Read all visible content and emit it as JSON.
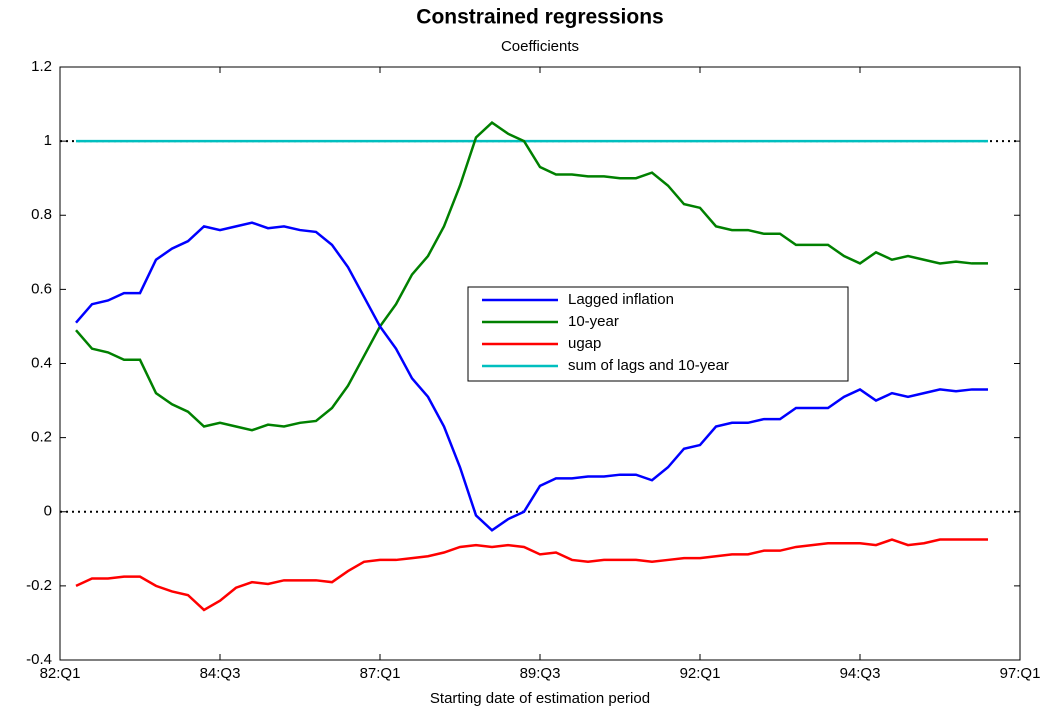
{
  "chart_data": {
    "type": "line",
    "title": "Constrained regressions",
    "subtitle": "Coefficients",
    "x_label": "Starting date of estimation period",
    "x": [
      82.25,
      82.5,
      82.75,
      83,
      83.25,
      83.5,
      83.75,
      84,
      84.25,
      84.5,
      84.75,
      85,
      85.25,
      85.5,
      85.75,
      86,
      86.25,
      86.5,
      86.75,
      87,
      87.25,
      87.5,
      87.75,
      88,
      88.25,
      88.5,
      88.75,
      89,
      89.25,
      89.5,
      89.75,
      90,
      90.25,
      90.5,
      90.75,
      91,
      91.25,
      91.5,
      91.75,
      92,
      92.25,
      92.5,
      92.75,
      93,
      93.25,
      93.5,
      93.75,
      94,
      94.25,
      94.5,
      94.75,
      95,
      95.25,
      95.5,
      95.75,
      96,
      96.25,
      96.5
    ],
    "series": [
      {
        "name": "Lagged inflation",
        "color": "#0000ff",
        "values": [
          0.51,
          0.56,
          0.57,
          0.59,
          0.59,
          0.68,
          0.71,
          0.73,
          0.77,
          0.76,
          0.77,
          0.78,
          0.765,
          0.77,
          0.76,
          0.755,
          0.72,
          0.66,
          0.58,
          0.5,
          0.44,
          0.36,
          0.31,
          0.23,
          0.12,
          -0.01,
          -0.05,
          -0.02,
          0.0,
          0.07,
          0.09,
          0.09,
          0.095,
          0.095,
          0.1,
          0.1,
          0.085,
          0.12,
          0.17,
          0.18,
          0.23,
          0.24,
          0.24,
          0.25,
          0.25,
          0.28,
          0.28,
          0.28,
          0.31,
          0.33,
          0.3,
          0.32,
          0.31,
          0.32,
          0.33,
          0.325,
          0.33,
          0.33
        ]
      },
      {
        "name": "10-year",
        "color": "#008000",
        "values": [
          0.49,
          0.44,
          0.43,
          0.41,
          0.41,
          0.32,
          0.29,
          0.27,
          0.23,
          0.24,
          0.23,
          0.22,
          0.235,
          0.23,
          0.24,
          0.245,
          0.28,
          0.34,
          0.42,
          0.5,
          0.56,
          0.64,
          0.69,
          0.77,
          0.88,
          1.01,
          1.05,
          1.02,
          1.0,
          0.93,
          0.91,
          0.91,
          0.905,
          0.905,
          0.9,
          0.9,
          0.915,
          0.88,
          0.83,
          0.82,
          0.77,
          0.76,
          0.76,
          0.75,
          0.75,
          0.72,
          0.72,
          0.72,
          0.69,
          0.67,
          0.7,
          0.68,
          0.69,
          0.68,
          0.67,
          0.675,
          0.67,
          0.67
        ]
      },
      {
        "name": "ugap",
        "color": "#ff0000",
        "values": [
          -0.2,
          -0.18,
          -0.18,
          -0.175,
          -0.175,
          -0.2,
          -0.215,
          -0.225,
          -0.265,
          -0.24,
          -0.205,
          -0.19,
          -0.195,
          -0.185,
          -0.185,
          -0.185,
          -0.19,
          -0.16,
          -0.135,
          -0.13,
          -0.13,
          -0.125,
          -0.12,
          -0.11,
          -0.095,
          -0.09,
          -0.095,
          -0.09,
          -0.095,
          -0.115,
          -0.11,
          -0.13,
          -0.135,
          -0.13,
          -0.13,
          -0.13,
          -0.135,
          -0.13,
          -0.125,
          -0.125,
          -0.12,
          -0.115,
          -0.115,
          -0.105,
          -0.105,
          -0.095,
          -0.09,
          -0.085,
          -0.085,
          -0.085,
          -0.09,
          -0.075,
          -0.09,
          -0.085,
          -0.075,
          -0.075,
          -0.075,
          -0.075
        ]
      },
      {
        "name": "sum of lags and 10-year",
        "color": "#00bfbf",
        "values": [
          1,
          1,
          1,
          1,
          1,
          1,
          1,
          1,
          1,
          1,
          1,
          1,
          1,
          1,
          1,
          1,
          1,
          1,
          1,
          1,
          1,
          1,
          1,
          1,
          1,
          1,
          1,
          1,
          1,
          1,
          1,
          1,
          1,
          1,
          1,
          1,
          1,
          1,
          1,
          1,
          1,
          1,
          1,
          1,
          1,
          1,
          1,
          1,
          1,
          1,
          1,
          1,
          1,
          1,
          1,
          1,
          1,
          1
        ]
      }
    ],
    "xlim": [
      82,
      97
    ],
    "xticks": [
      {
        "value": 82,
        "label": "82:Q1"
      },
      {
        "value": 84.5,
        "label": "84:Q3"
      },
      {
        "value": 87,
        "label": "87:Q1"
      },
      {
        "value": 89.5,
        "label": "89:Q3"
      },
      {
        "value": 92,
        "label": "92:Q1"
      },
      {
        "value": 94.5,
        "label": "94:Q3"
      },
      {
        "value": 97,
        "label": "97:Q1"
      }
    ],
    "ylim": [
      -0.4,
      1.2
    ],
    "yticks": [
      -0.4,
      -0.2,
      0,
      0.2,
      0.4,
      0.6,
      0.8,
      1,
      1.2
    ],
    "reference_lines": [
      0,
      1
    ],
    "legend": "center-right"
  }
}
